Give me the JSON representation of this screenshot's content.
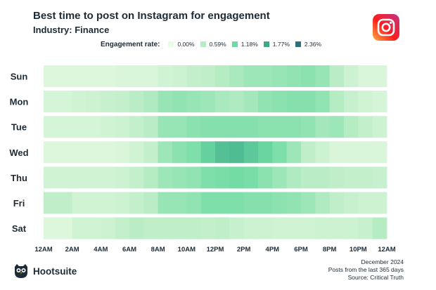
{
  "header": {
    "title": "Best time to post on Instagram for engagement",
    "subtitle": "Industry: Finance"
  },
  "legend": {
    "title": "Engagement rate:",
    "items": [
      {
        "label": "0.00%",
        "color": "#eafbe6"
      },
      {
        "label": "0.59%",
        "color": "#b7ecc3"
      },
      {
        "label": "1.18%",
        "color": "#6fdba3"
      },
      {
        "label": "1.77%",
        "color": "#3fa88a"
      },
      {
        "label": "2.36%",
        "color": "#2e6f79"
      }
    ]
  },
  "footer": {
    "brand": "Hootsuite",
    "date": "December 2024",
    "range": "Posts from the last 365 days",
    "source": "Source: Critical Truth"
  },
  "chart_data": {
    "type": "heatmap",
    "title": "Best time to post on Instagram for engagement",
    "rows": [
      "Sun",
      "Mon",
      "Tue",
      "Wed",
      "Thu",
      "Fri",
      "Sat"
    ],
    "x_tick_labels": [
      "12AM",
      "2AM",
      "4AM",
      "6AM",
      "8AM",
      "10AM",
      "12PM",
      "2PM",
      "4PM",
      "6PM",
      "8PM",
      "10PM",
      "12AM"
    ],
    "hours_per_row": 24,
    "value_range": [
      0,
      2.36
    ],
    "value_unit": "% engagement rate",
    "values": [
      [
        0.15,
        0.15,
        0.15,
        0.15,
        0.15,
        0.2,
        0.2,
        0.2,
        0.3,
        0.35,
        0.45,
        0.5,
        0.6,
        0.7,
        0.8,
        0.8,
        0.85,
        0.9,
        0.95,
        0.85,
        0.55,
        0.35,
        0.2,
        0.2
      ],
      [
        0.25,
        0.25,
        0.3,
        0.35,
        0.4,
        0.45,
        0.55,
        0.65,
        0.85,
        0.9,
        0.85,
        0.8,
        0.7,
        0.65,
        0.75,
        0.9,
        0.95,
        1.0,
        1.0,
        0.9,
        0.6,
        0.4,
        0.3,
        0.25
      ],
      [
        0.25,
        0.25,
        0.25,
        0.25,
        0.3,
        0.35,
        0.45,
        0.55,
        0.85,
        0.85,
        0.95,
        1.0,
        1.0,
        1.0,
        1.0,
        0.95,
        0.95,
        0.95,
        0.9,
        0.75,
        0.8,
        0.6,
        0.45,
        0.35
      ],
      [
        0.15,
        0.15,
        0.15,
        0.15,
        0.15,
        0.2,
        0.3,
        0.45,
        0.8,
        0.95,
        1.05,
        1.3,
        1.5,
        1.55,
        1.4,
        1.25,
        1.05,
        0.8,
        0.5,
        0.35,
        0.2,
        0.2,
        0.2,
        0.2
      ],
      [
        0.3,
        0.3,
        0.3,
        0.3,
        0.3,
        0.35,
        0.45,
        0.6,
        0.8,
        0.85,
        0.9,
        1.05,
        1.1,
        1.15,
        1.1,
        0.95,
        0.8,
        0.65,
        0.55,
        0.55,
        0.5,
        0.45,
        0.45,
        0.4
      ],
      [
        0.5,
        0.5,
        0.3,
        0.3,
        0.3,
        0.35,
        0.45,
        0.55,
        0.85,
        0.85,
        0.9,
        1.05,
        1.05,
        1.05,
        1.0,
        1.0,
        0.95,
        0.9,
        0.8,
        0.65,
        0.5,
        0.4,
        0.35,
        0.35
      ],
      [
        0.15,
        0.15,
        0.3,
        0.3,
        0.35,
        0.45,
        0.55,
        0.5,
        0.5,
        0.5,
        0.5,
        0.45,
        0.5,
        0.4,
        0.35,
        0.35,
        0.3,
        0.3,
        0.3,
        0.35,
        0.35,
        0.35,
        0.4,
        0.6
      ]
    ]
  }
}
